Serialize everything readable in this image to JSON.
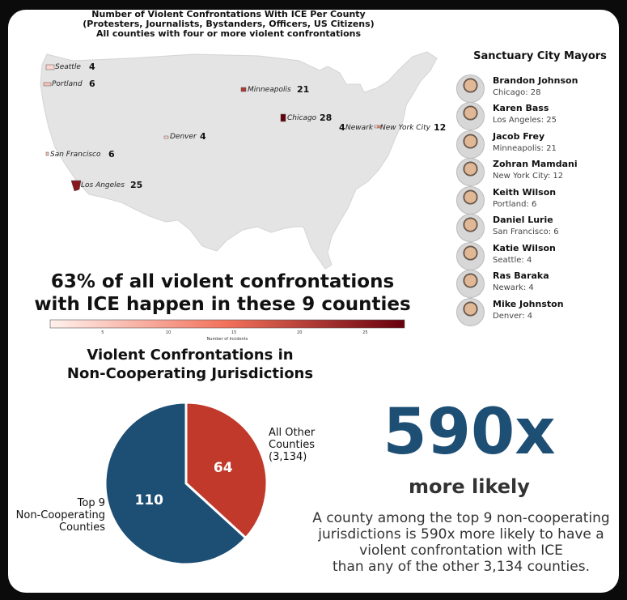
{
  "map": {
    "title_lines": [
      "Number of Violent Confrontations With ICE Per County",
      "(Protesters, Journalists, Bystanders, Officers, US Citizens)",
      "All counties with four or more violent confrontations"
    ],
    "cities": [
      {
        "name": "Seattle",
        "value": "4",
        "count": 4
      },
      {
        "name": "Portland",
        "value": "6",
        "count": 6
      },
      {
        "name": "Minneapolis",
        "value": "21",
        "count": 21
      },
      {
        "name": "Chicago",
        "value": "28",
        "count": 28
      },
      {
        "name": "Newark",
        "value": "4",
        "count": 4
      },
      {
        "name": "New York City",
        "value": "12",
        "count": 12
      },
      {
        "name": "Denver",
        "value": "4",
        "count": 4
      },
      {
        "name": "San Francisco",
        "value": "6",
        "count": 6
      },
      {
        "name": "Los Angeles",
        "value": "25",
        "count": 25
      }
    ],
    "colorbar": {
      "ticks": [
        "5",
        "10",
        "15",
        "20",
        "25"
      ],
      "tick_values": [
        5,
        10,
        15,
        20,
        25
      ],
      "range": [
        1,
        28
      ],
      "label": "Number of Incidents",
      "color_low": "#fff2ee",
      "color_high": "#67000d"
    }
  },
  "headline_lines": [
    "63% of all violent confrontations",
    "with ICE happen in these 9 counties"
  ],
  "chart_data": {
    "type": "pie",
    "title_lines": [
      "Violent Confrontations in",
      "Non-Cooperating Jurisdictions"
    ],
    "slices": [
      {
        "label_lines": [
          "All Other",
          "Counties",
          "(3,134)"
        ],
        "value": 64,
        "value_label": "64",
        "color": "#c0392b"
      },
      {
        "label_lines": [
          "Top 9",
          "Non-Cooperating",
          "Counties"
        ],
        "value": 110,
        "value_label": "110",
        "color": "#1d4e74"
      }
    ]
  },
  "stat": {
    "big_number": "590x",
    "subtitle": "more likely",
    "description_lines": [
      "A county among the top 9 non-cooperating",
      "jurisdictions is 590x more likely to have a",
      "violent confrontation with ICE",
      "than any of the other 3,134 counties."
    ]
  },
  "mayors": {
    "title": "Sanctuary City Mayors",
    "items": [
      {
        "name": "Brandon Johnson",
        "detail": "Chicago: 28"
      },
      {
        "name": "Karen Bass",
        "detail": "Los Angeles: 25"
      },
      {
        "name": "Jacob Frey",
        "detail": "Minneapolis: 21"
      },
      {
        "name": "Zohran Mamdani",
        "detail": "New York City: 12"
      },
      {
        "name": "Keith Wilson",
        "detail": "Portland: 6"
      },
      {
        "name": "Daniel Lurie",
        "detail": "San Francisco: 6"
      },
      {
        "name": "Katie Wilson",
        "detail": "Seattle: 4"
      },
      {
        "name": "Ras Baraka",
        "detail": "Newark: 4"
      },
      {
        "name": "Mike Johnston",
        "detail": "Denver: 4"
      }
    ]
  }
}
